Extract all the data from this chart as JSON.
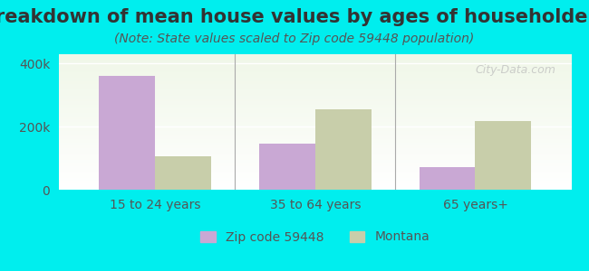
{
  "title": "Breakdown of mean house values by ages of householders",
  "subtitle": "(Note: State values scaled to Zip code 59448 population)",
  "categories": [
    "15 to 24 years",
    "35 to 64 years",
    "65 years+"
  ],
  "zip_values": [
    360000,
    147000,
    72000
  ],
  "state_values": [
    107000,
    255000,
    218000
  ],
  "ylim": [
    0,
    430000
  ],
  "yticks": [
    0,
    200000,
    400000
  ],
  "ytick_labels": [
    "0",
    "200k",
    "400k"
  ],
  "zip_color": "#c9a8d4",
  "state_color": "#c8ceaa",
  "background_color": "#00eeee",
  "plot_bg_gradient_top": "#f0f7e8",
  "plot_bg_gradient_bottom": "#ffffff",
  "legend_zip_label": "Zip code 59448",
  "legend_state_label": "Montana",
  "bar_width": 0.35,
  "watermark": "City-Data.com",
  "title_fontsize": 15,
  "subtitle_fontsize": 10,
  "tick_fontsize": 10,
  "legend_fontsize": 10
}
